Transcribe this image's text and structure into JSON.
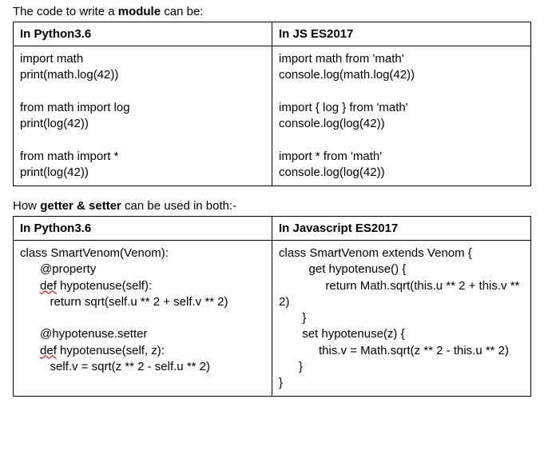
{
  "section1": {
    "intro_pre": "The code to write a ",
    "intro_bold": "module",
    "intro_post": " can be:",
    "header_left": "In Python3.6",
    "header_right": "In JS ES2017",
    "left_block1_l1": "import math",
    "left_block1_l2": "print(math.log(42))",
    "left_block2_l1": "from math import log",
    "left_block2_l2": "print(log(42))",
    "left_block3_l1": "from math import *",
    "left_block3_l2": "print(log(42))",
    "right_block1_l1": "import math from 'math'",
    "right_block1_l2": "console.log(math.log(42))",
    "right_block2_l1": "import { log } from 'math'",
    "right_block2_l2": "console.log(log(42))",
    "right_block3_l1": "import * from 'math'",
    "right_block3_l2": "console.log(log(42))"
  },
  "section2": {
    "intro_pre": "How ",
    "intro_bold": "getter & setter",
    "intro_post": " can be used in both:-",
    "header_left": "In  Python3.6",
    "header_right": "In Javascript ES2017",
    "py_l1": "class SmartVenom(Venom):",
    "py_l2": "      @property",
    "py_l3_pre": "      ",
    "py_l3_def": "def",
    "py_l3_post": " hypotenuse(self):",
    "py_l4": "         return sqrt(self.u ** 2 + self.v ** 2)",
    "py_l5": "",
    "py_l6": "      @hypotenuse.setter",
    "py_l7_pre": "      ",
    "py_l7_def": "def",
    "py_l7_post": " hypotenuse(self, z):",
    "py_l8": "         self.v = sqrt(z ** 2 - self.u ** 2)",
    "js_l1": "class SmartVenom extends Venom {",
    "js_l2": "         get hypotenuse() {",
    "js_l3": "              return Math.sqrt(this.u ** 2 + this.v ** 2)",
    "js_l4": "       }",
    "js_l5": "       set hypotenuse(z) {",
    "js_l6": "            this.v = Math.sqrt(z ** 2 - this.u ** 2)",
    "js_l7": "      }",
    "js_l8": "}"
  }
}
